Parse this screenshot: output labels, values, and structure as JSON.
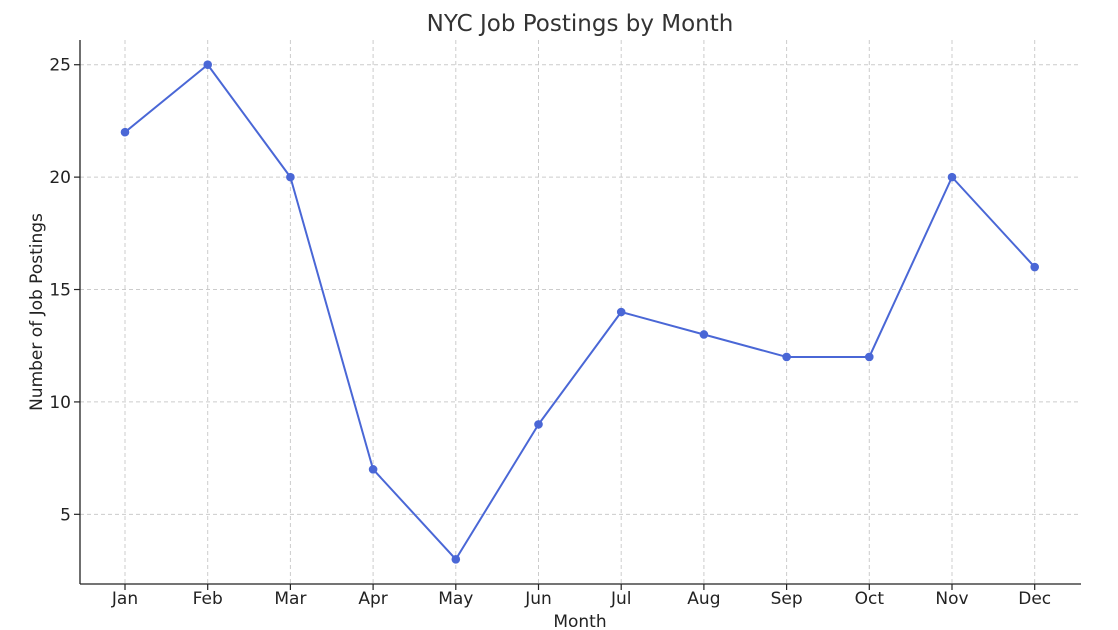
{
  "chart_data": {
    "type": "line",
    "title": "NYC Job Postings by Month",
    "xlabel": "Month",
    "ylabel": "Number of Job Postings",
    "categories": [
      "Jan",
      "Feb",
      "Mar",
      "Apr",
      "May",
      "Jun",
      "Jul",
      "Aug",
      "Sep",
      "Oct",
      "Nov",
      "Dec"
    ],
    "values": [
      22,
      25,
      20,
      7,
      3,
      9,
      14,
      13,
      12,
      12,
      20,
      16
    ],
    "ylim": [
      1.9,
      26.1
    ],
    "yticks": [
      5,
      10,
      15,
      20,
      25
    ],
    "grid": true,
    "color": "#4A67D6"
  }
}
